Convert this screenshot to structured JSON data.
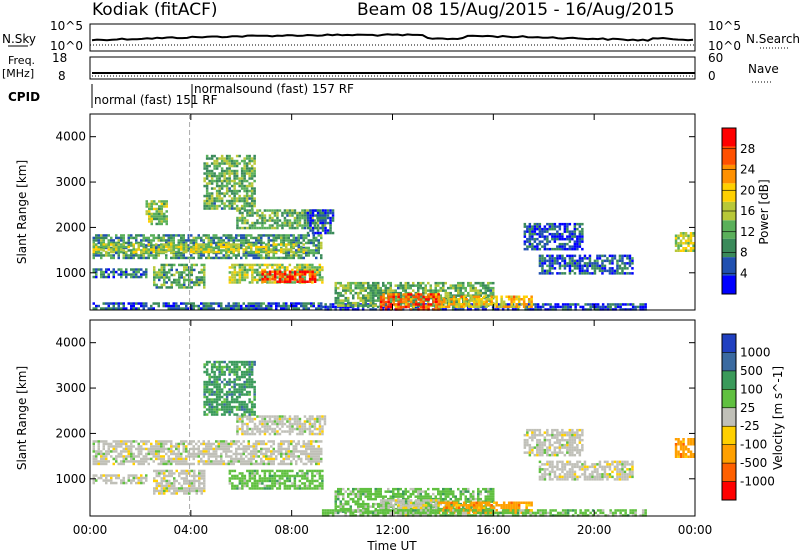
{
  "header": {
    "station": "Kodiak (fitACF)",
    "beam_info": "Beam 08  15/Aug/2015 - 16/Aug/2015"
  },
  "strip_labels": {
    "nsky": "N.Sky",
    "nsearch": "N.Search",
    "freq_line1": "Freq.",
    "freq_line2": "[MHz]",
    "nave": "Nave",
    "cpid": "CPID"
  },
  "strip_ticks": {
    "nsky_top": "10^5",
    "nsky_bottom": "10^0",
    "nsearch_top": "10^5",
    "nsearch_bottom": "10^0",
    "freq_top": "18",
    "freq_bottom": "8",
    "nave_top": "60",
    "nave_bottom": "0"
  },
  "cpid_segments": [
    {
      "label": "normal (fast)  151 RF"
    },
    {
      "label": "normalsound (fast) 157 RF"
    }
  ],
  "chart_data": [
    {
      "type": "heatmap",
      "name": "power",
      "ylabel": "Slant Range [km]",
      "xlabel": "",
      "x_ticks": [
        "00:00",
        "04:00",
        "08:00",
        "12:00",
        "16:00",
        "20:00",
        "00:00"
      ],
      "x_range_hours": [
        0,
        24
      ],
      "y_ticks": [
        "1000",
        "2000",
        "3000",
        "4000"
      ],
      "y_range_km": [
        180,
        4500
      ],
      "colorbar": {
        "label": "Power [dB]",
        "ticks": [
          "4",
          "8",
          "12",
          "16",
          "20",
          "24",
          "28"
        ],
        "range": [
          0,
          32
        ],
        "colors": [
          "#0000ff",
          "#2050b0",
          "#3a8a5a",
          "#5ab05a",
          "#b8c838",
          "#ffd000",
          "#ff9000",
          "#ff5000",
          "#ff0000"
        ]
      },
      "regions": [
        {
          "t0": 0.1,
          "t1": 9.2,
          "r0": 1350,
          "r1": 1850,
          "v": 10
        },
        {
          "t0": 0.1,
          "t1": 8.5,
          "r0": 1450,
          "r1": 1650,
          "v": 16
        },
        {
          "t0": 0.1,
          "t1": 2.2,
          "r0": 900,
          "r1": 1100,
          "v": 7
        },
        {
          "t0": 2.5,
          "t1": 4.5,
          "r0": 700,
          "r1": 1200,
          "v": 11
        },
        {
          "t0": 5.5,
          "t1": 9.2,
          "r0": 800,
          "r1": 1200,
          "v": 15
        },
        {
          "t0": 6.8,
          "t1": 8.9,
          "r0": 800,
          "r1": 1050,
          "v": 28
        },
        {
          "t0": 5.8,
          "t1": 9.3,
          "r0": 2000,
          "r1": 2400,
          "v": 12
        },
        {
          "t0": 8.6,
          "t1": 9.6,
          "r0": 1900,
          "r1": 2400,
          "v": 6
        },
        {
          "t0": 2.2,
          "t1": 3.0,
          "r0": 2100,
          "r1": 2600,
          "v": 14
        },
        {
          "t0": 4.5,
          "t1": 6.5,
          "r0": 2400,
          "r1": 3600,
          "v": 12
        },
        {
          "t0": 0.1,
          "t1": 9.2,
          "r0": 200,
          "r1": 350,
          "v": 6
        },
        {
          "t0": 9.2,
          "t1": 22.0,
          "r0": 200,
          "r1": 330,
          "v": 4
        },
        {
          "t0": 9.7,
          "t1": 16.0,
          "r0": 300,
          "r1": 800,
          "v": 12
        },
        {
          "t0": 11.5,
          "t1": 13.8,
          "r0": 200,
          "r1": 550,
          "v": 26
        },
        {
          "t0": 13.8,
          "t1": 17.5,
          "r0": 250,
          "r1": 500,
          "v": 20
        },
        {
          "t0": 17.2,
          "t1": 19.5,
          "r0": 1500,
          "r1": 2100,
          "v": 5
        },
        {
          "t0": 17.8,
          "t1": 21.5,
          "r0": 1000,
          "r1": 1400,
          "v": 6
        },
        {
          "t0": 23.2,
          "t1": 23.9,
          "r0": 1500,
          "r1": 1900,
          "v": 16
        }
      ]
    },
    {
      "type": "heatmap",
      "name": "velocity",
      "ylabel": "Slant Range [km]",
      "xlabel": "Time UT",
      "x_ticks": [
        "00:00",
        "04:00",
        "08:00",
        "12:00",
        "16:00",
        "20:00",
        "00:00"
      ],
      "x_range_hours": [
        0,
        24
      ],
      "y_ticks": [
        "1000",
        "2000",
        "3000",
        "4000"
      ],
      "y_range_km": [
        180,
        4500
      ],
      "colorbar": {
        "label": "Velocity [m s^-1]",
        "ticks": [
          "1000",
          "500",
          "100",
          "25",
          "-25",
          "-100",
          "-500",
          "-1000"
        ],
        "colors": [
          "#2040c0",
          "#3a6aa0",
          "#3a9a5a",
          "#60c040",
          "#c0c0b8",
          "#ffd000",
          "#ffa000",
          "#ff6000",
          "#ff0000"
        ]
      },
      "regions": [
        {
          "t0": 0.1,
          "t1": 9.2,
          "r0": 1350,
          "r1": 1850,
          "c": 4
        },
        {
          "t0": 0.1,
          "t1": 2.2,
          "r0": 900,
          "r1": 1100,
          "c": 4
        },
        {
          "t0": 2.5,
          "t1": 4.5,
          "r0": 700,
          "r1": 1200,
          "c": 4
        },
        {
          "t0": 5.5,
          "t1": 9.2,
          "r0": 800,
          "r1": 1200,
          "c": 3
        },
        {
          "t0": 5.8,
          "t1": 9.3,
          "r0": 2000,
          "r1": 2400,
          "c": 4
        },
        {
          "t0": 4.5,
          "t1": 6.5,
          "r0": 2400,
          "r1": 3600,
          "c": 2
        },
        {
          "t0": 9.7,
          "t1": 16.0,
          "r0": 300,
          "r1": 800,
          "c": 3
        },
        {
          "t0": 11.5,
          "t1": 13.8,
          "r0": 200,
          "r1": 550,
          "c": 4
        },
        {
          "t0": 13.8,
          "t1": 17.5,
          "r0": 250,
          "r1": 500,
          "c": 6
        },
        {
          "t0": 17.2,
          "t1": 19.5,
          "r0": 1500,
          "r1": 2100,
          "c": 4
        },
        {
          "t0": 17.8,
          "t1": 21.5,
          "r0": 1000,
          "r1": 1400,
          "c": 4
        },
        {
          "t0": 23.2,
          "t1": 23.9,
          "r0": 1500,
          "r1": 1900,
          "c": 6
        },
        {
          "t0": 9.2,
          "t1": 22.0,
          "r0": 200,
          "r1": 330,
          "c": 3
        }
      ]
    }
  ]
}
